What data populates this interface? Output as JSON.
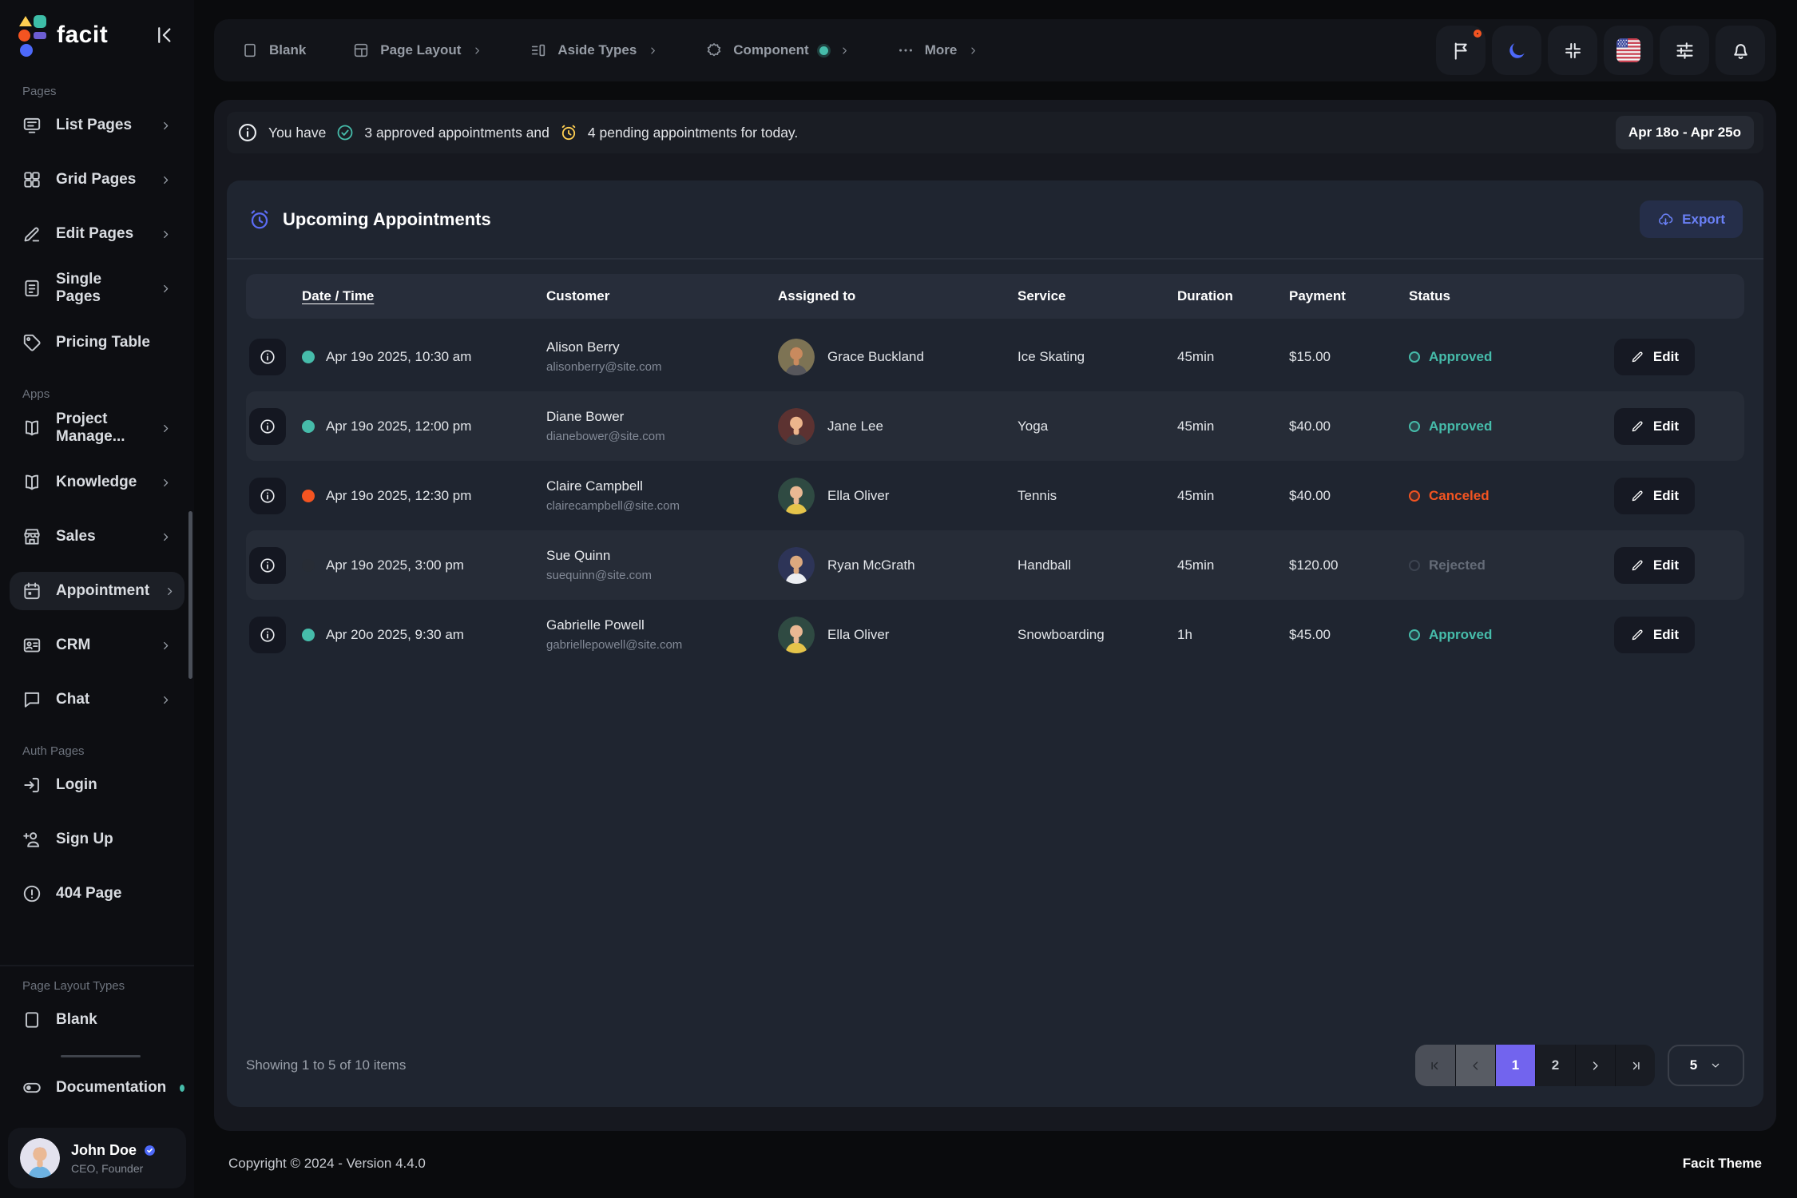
{
  "brand": {
    "name": "facit"
  },
  "header": {
    "tabs": [
      {
        "label": "Blank",
        "icon": "blank-square",
        "chevron": false,
        "dot": false
      },
      {
        "label": "Page Layout",
        "icon": "page-layout",
        "chevron": true,
        "dot": false
      },
      {
        "label": "Aside Types",
        "icon": "aside-types",
        "chevron": true,
        "dot": false
      },
      {
        "label": "Component",
        "icon": "component",
        "chevron": true,
        "dot": true
      },
      {
        "label": "More",
        "icon": "more-dots",
        "chevron": true,
        "dot": false
      }
    ],
    "actions": [
      {
        "name": "alerts",
        "icon": "flag",
        "badge": true
      },
      {
        "name": "dark-mode",
        "icon": "moon",
        "badge": false
      },
      {
        "name": "fullscreen",
        "icon": "compress",
        "badge": false
      },
      {
        "name": "language",
        "icon": "us-flag",
        "badge": false
      },
      {
        "name": "settings",
        "icon": "sliders",
        "badge": false
      },
      {
        "name": "notifications",
        "icon": "bell",
        "badge": false
      }
    ]
  },
  "sidebar": {
    "sections": [
      {
        "title": "Pages",
        "items": [
          {
            "label": "List Pages",
            "icon": "list-pages",
            "chevron": true,
            "active": false
          },
          {
            "label": "Grid Pages",
            "icon": "grid-pages",
            "chevron": true,
            "active": false
          },
          {
            "label": "Edit Pages",
            "icon": "edit-pages",
            "chevron": true,
            "active": false
          },
          {
            "label": "Single Pages",
            "icon": "single-pages",
            "chevron": true,
            "active": false
          },
          {
            "label": "Pricing Table",
            "icon": "pricing-tag",
            "chevron": false,
            "active": false
          }
        ]
      },
      {
        "title": "Apps",
        "items": [
          {
            "label": "Project Manage...",
            "icon": "book",
            "chevron": true,
            "active": false
          },
          {
            "label": "Knowledge",
            "icon": "book",
            "chevron": true,
            "active": false
          },
          {
            "label": "Sales",
            "icon": "store",
            "chevron": true,
            "active": false
          },
          {
            "label": "Appointment",
            "icon": "calendar",
            "chevron": true,
            "active": true
          },
          {
            "label": "CRM",
            "icon": "id-card",
            "chevron": true,
            "active": false
          },
          {
            "label": "Chat",
            "icon": "chat",
            "chevron": true,
            "active": false
          }
        ]
      },
      {
        "title": "Auth Pages",
        "items": [
          {
            "label": "Login",
            "icon": "login",
            "chevron": false,
            "active": false
          },
          {
            "label": "Sign Up",
            "icon": "signup",
            "chevron": false,
            "active": false
          },
          {
            "label": "404 Page",
            "icon": "error-circle",
            "chevron": false,
            "active": false
          }
        ]
      }
    ],
    "layout": {
      "title": "Page Layout Types",
      "blank_label": "Blank",
      "documentation_label": "Documentation"
    },
    "user": {
      "name": "John Doe",
      "role": "CEO, Founder",
      "avatar": {
        "bg": "#e3e2ee",
        "hair": "#cf5b2e",
        "skin": "#eab995",
        "shirt": "#6cb1e1"
      }
    }
  },
  "alert": {
    "text_prefix": "You have",
    "approved_part": "3 approved appointments and",
    "pending_part": "4 pending appointments for today.",
    "date_range": "Apr 18o - Apr 25o"
  },
  "card": {
    "title": "Upcoming Appointments",
    "export_label": "Export",
    "edit_label": "Edit",
    "columns": [
      "Date / Time",
      "Customer",
      "Assigned to",
      "Service",
      "Duration",
      "Payment",
      "Status"
    ],
    "rows": [
      {
        "dot_color": "#46bcaa",
        "datetime": "Apr 19o 2025, 10:30 am",
        "customer": "Alison Berry",
        "email": "alisonberry@site.com",
        "assignee": "Grace Buckland",
        "avatar": {
          "bg": "#7d7354",
          "hair": "#3a2e26",
          "skin": "#c98a5e",
          "shirt": "#57575c"
        },
        "service": "Ice Skating",
        "duration": "45min",
        "payment": "$15.00",
        "status": "Approved",
        "status_type": "success"
      },
      {
        "dot_color": "#46bcaa",
        "datetime": "Apr 19o 2025, 12:00 pm",
        "customer": "Diane Bower",
        "email": "dianebower@site.com",
        "assignee": "Jane Lee",
        "avatar": {
          "bg": "#5c3231",
          "hair": "#c04f2c",
          "skin": "#ecb58c",
          "shirt": "#3a3f46"
        },
        "service": "Yoga",
        "duration": "45min",
        "payment": "$40.00",
        "status": "Approved",
        "status_type": "success"
      },
      {
        "dot_color": "#f35421",
        "datetime": "Apr 19o 2025, 12:30 pm",
        "customer": "Claire Campbell",
        "email": "clairecampbell@site.com",
        "assignee": "Ella Oliver",
        "avatar": {
          "bg": "#2f4a42",
          "hair": "#ead9a4",
          "skin": "#eab893",
          "shirt": "#e5c44a"
        },
        "service": "Tennis",
        "duration": "45min",
        "payment": "$40.00",
        "status": "Canceled",
        "status_type": "danger"
      },
      {
        "dot_color": "#272c35",
        "datetime": "Apr 19o 2025, 3:00 pm",
        "customer": "Sue Quinn",
        "email": "suequinn@site.com",
        "assignee": "Ryan McGrath",
        "avatar": {
          "bg": "#2d3457",
          "hair": "#2e2e36",
          "skin": "#dca97f",
          "shirt": "#eceef2"
        },
        "service": "Handball",
        "duration": "45min",
        "payment": "$120.00",
        "status": "Rejected",
        "status_type": "muted"
      },
      {
        "dot_color": "#46bcaa",
        "datetime": "Apr 20o 2025, 9:30 am",
        "customer": "Gabrielle Powell",
        "email": "gabriellepowell@site.com",
        "assignee": "Ella Oliver",
        "avatar": {
          "bg": "#2f4a42",
          "hair": "#ead9a4",
          "skin": "#eab893",
          "shirt": "#e5c44a"
        },
        "service": "Snowboarding",
        "duration": "1h",
        "payment": "$45.00",
        "status": "Approved",
        "status_type": "success"
      }
    ],
    "summary": "Showing 1 to 5 of 10 items",
    "pagination": {
      "pages": [
        "1",
        "2"
      ],
      "active_page": "1",
      "per_page": "5"
    }
  },
  "page_footer": {
    "copyright": "Copyright © 2024 - Version 4.4.0",
    "theme_name": "Facit Theme"
  },
  "colors": {
    "primary": "#6c5dd3",
    "info": "#4d69fa",
    "success": "#46bcaa",
    "danger": "#f35421",
    "warning": "#ffcf52"
  }
}
